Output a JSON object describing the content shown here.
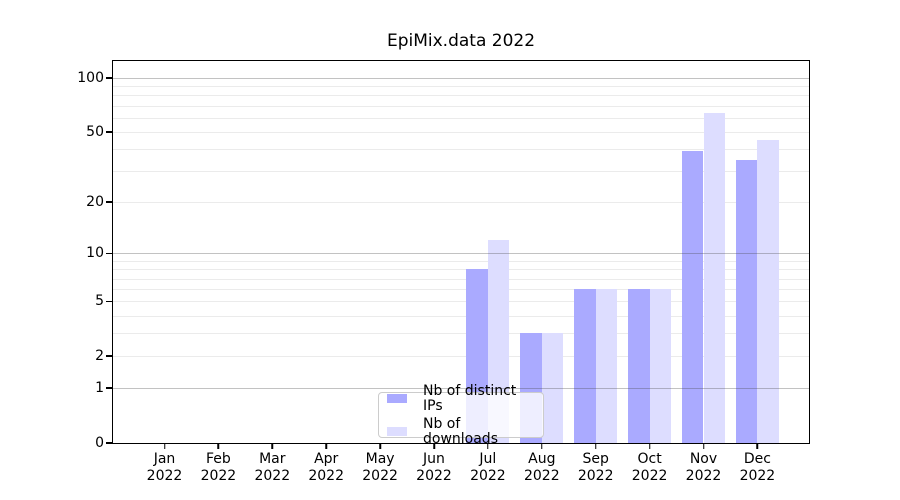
{
  "title": "EpiMix.data 2022",
  "chart_data": {
    "type": "bar",
    "title": "EpiMix.data 2022",
    "categories": [
      "Jan",
      "Feb",
      "Mar",
      "Apr",
      "May",
      "Jun",
      "Jul",
      "Aug",
      "Sep",
      "Oct",
      "Nov",
      "Dec"
    ],
    "year_label": "2022",
    "series": [
      {
        "name": "Nb of distinct IPs",
        "color": "#aaaaff",
        "values": [
          0,
          0,
          0,
          0,
          0,
          0,
          8,
          3,
          6,
          6,
          39,
          35
        ]
      },
      {
        "name": "Nb of downloads",
        "color": "#ddddff",
        "values": [
          0,
          0,
          0,
          0,
          0,
          0,
          12,
          3,
          6,
          6,
          64,
          45
        ]
      }
    ],
    "yticks": [
      0,
      1,
      2,
      5,
      10,
      20,
      50,
      100
    ],
    "ylim": [
      0,
      127
    ],
    "yscale": "log10(1+v)",
    "grid": "horizontal",
    "grid_major_values": [
      1,
      10,
      100
    ],
    "grid_minor_values": [
      2,
      3,
      4,
      5,
      6,
      7,
      8,
      9,
      20,
      30,
      40,
      50,
      60,
      70,
      80,
      90
    ],
    "legend_position": "bottom-center"
  }
}
